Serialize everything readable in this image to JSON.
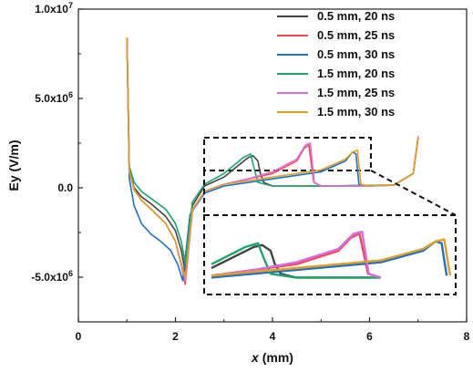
{
  "chart_data": {
    "type": "line",
    "xlabel": "x (mm)",
    "ylabel": "Ey (V/m)",
    "xlim": [
      0,
      8
    ],
    "ylim": [
      -7500000,
      10000000
    ],
    "x_ticks": [
      0,
      2,
      4,
      6,
      8
    ],
    "x_tick_labels": [
      "0",
      "2",
      "4",
      "6",
      "8"
    ],
    "y_ticks": [
      -5000000,
      0,
      5000000,
      10000000
    ],
    "y_tick_labels": [
      "-5.0x10^6",
      "0.0",
      "5.0x10^6",
      "1.0x10^7"
    ],
    "grid": false,
    "legend_position": "top-right",
    "series": [
      {
        "name": "0.5 mm, 20 ns",
        "color": "#444444",
        "x": [
          1.0,
          1.05,
          1.15,
          1.3,
          1.5,
          1.8,
          2.0,
          2.12,
          2.2,
          2.35,
          2.6,
          3.0,
          3.5,
          3.6,
          3.7,
          3.75,
          3.82,
          4.0,
          5.0,
          6.5,
          6.9,
          7.0
        ],
        "y": [
          8400000,
          1000000,
          0,
          -500000,
          -900000,
          -1600000,
          -2400000,
          -3500000,
          -4700000,
          -1000000,
          100000,
          600000,
          1700000,
          1800000,
          1500000,
          800000,
          300000,
          100000,
          100000,
          150000,
          800000,
          2800000
        ]
      },
      {
        "name": "0.5 mm, 25 ns",
        "color": "#ff4455",
        "x": [
          1.0,
          1.05,
          1.15,
          1.3,
          1.5,
          1.8,
          2.0,
          2.12,
          2.2,
          2.35,
          2.6,
          3.0,
          3.5,
          4.0,
          4.5,
          4.65,
          4.75,
          4.85,
          5.0,
          6.0,
          6.5,
          6.9,
          7.0
        ],
        "y": [
          8400000,
          1000000,
          -100000,
          -700000,
          -1200000,
          -2000000,
          -3000000,
          -4300000,
          -5400000,
          -1300000,
          -200000,
          200000,
          500000,
          800000,
          1500000,
          2200000,
          2400000,
          300000,
          100000,
          100000,
          150000,
          800000,
          2800000
        ]
      },
      {
        "name": "0.5 mm, 30 ns",
        "color": "#1f6fd1",
        "x": [
          1.0,
          1.05,
          1.15,
          1.3,
          1.5,
          1.7,
          1.9,
          2.05,
          2.15,
          2.3,
          2.6,
          3.0,
          4.0,
          5.0,
          5.5,
          5.65,
          5.72,
          5.78,
          6.0,
          6.5,
          6.9,
          7.0
        ],
        "y": [
          8400000,
          500000,
          -1000000,
          -2000000,
          -2600000,
          -3000000,
          -3500000,
          -4300000,
          -5200000,
          -1500000,
          -300000,
          100000,
          500000,
          900000,
          1500000,
          2000000,
          1900000,
          200000,
          100000,
          150000,
          800000,
          2800000
        ]
      },
      {
        "name": "1.5 mm, 20 ns",
        "color": "#1aa66a",
        "x": [
          1.0,
          1.05,
          1.15,
          1.3,
          1.5,
          1.8,
          2.0,
          2.12,
          2.2,
          2.35,
          2.6,
          3.0,
          3.4,
          3.55,
          3.62,
          3.7,
          4.0,
          5.0,
          6.5,
          6.9,
          7.0
        ],
        "y": [
          8400000,
          1200000,
          300000,
          -200000,
          -600000,
          -1200000,
          -2000000,
          -3000000,
          -4200000,
          -800000,
          200000,
          800000,
          1700000,
          1900000,
          1100000,
          300000,
          100000,
          100000,
          150000,
          800000,
          2800000
        ]
      },
      {
        "name": "1.5 mm, 25 ns",
        "color": "#d66de0",
        "x": [
          1.0,
          1.05,
          1.15,
          1.3,
          1.5,
          1.8,
          2.0,
          2.12,
          2.2,
          2.35,
          2.6,
          3.0,
          3.5,
          4.0,
          4.5,
          4.68,
          4.78,
          4.86,
          5.0,
          6.0,
          6.5,
          6.9,
          7.0
        ],
        "y": [
          8400000,
          900000,
          -100000,
          -700000,
          -1200000,
          -2000000,
          -3000000,
          -4300000,
          -5200000,
          -1300000,
          -200000,
          200000,
          500000,
          900000,
          1600000,
          2400000,
          2500000,
          300000,
          100000,
          100000,
          150000,
          800000,
          2900000
        ]
      },
      {
        "name": "1.5 mm, 30 ns",
        "color": "#e0a020",
        "x": [
          1.0,
          1.05,
          1.15,
          1.3,
          1.5,
          1.8,
          2.0,
          2.12,
          2.2,
          2.35,
          2.6,
          3.0,
          4.0,
          5.0,
          5.5,
          5.65,
          5.75,
          5.82,
          6.0,
          6.5,
          6.9,
          7.0
        ],
        "y": [
          8400000,
          900000,
          -100000,
          -700000,
          -1200000,
          -2000000,
          -3000000,
          -4200000,
          -5000000,
          -1200000,
          -200000,
          200000,
          600000,
          1000000,
          1600000,
          2000000,
          2100000,
          200000,
          100000,
          150000,
          800000,
          2800000
        ]
      }
    ],
    "inset": {
      "x_range": [
        3.0,
        5.8
      ],
      "y_range": [
        -500000,
        2700000
      ]
    }
  }
}
